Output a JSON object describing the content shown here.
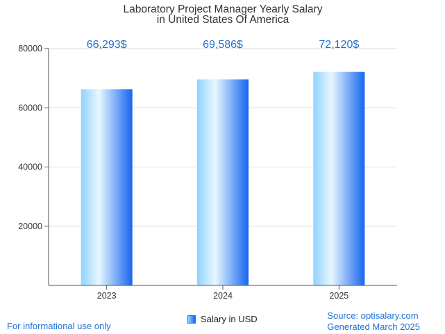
{
  "chart_data": {
    "type": "bar",
    "title": [
      "Laboratory Project Manager Yearly Salary",
      "in United States Of America"
    ],
    "categories": [
      "2023",
      "2024",
      "2025"
    ],
    "series": [
      {
        "name": "Salary in USD",
        "values": [
          66293,
          69586,
          72120
        ]
      }
    ],
    "data_labels": [
      "66,293$",
      "69,586$",
      "72,120$"
    ],
    "ylim": [
      0,
      80000
    ],
    "yticks": [
      20000,
      40000,
      60000,
      80000
    ],
    "xlabel": "",
    "ylabel": "",
    "grid": true,
    "legend_position": "bottom"
  },
  "footer": {
    "left": "For informational use only",
    "source": "Source: optisalary.com",
    "generated": "Generated March 2025"
  },
  "colors": {
    "bar_light": "#e8f7ff",
    "bar_mid": "#8fd3ff",
    "bar_dark": "#1565f0",
    "label": "#1f6fd6",
    "grid": "#dddddd",
    "axis": "#555555"
  }
}
